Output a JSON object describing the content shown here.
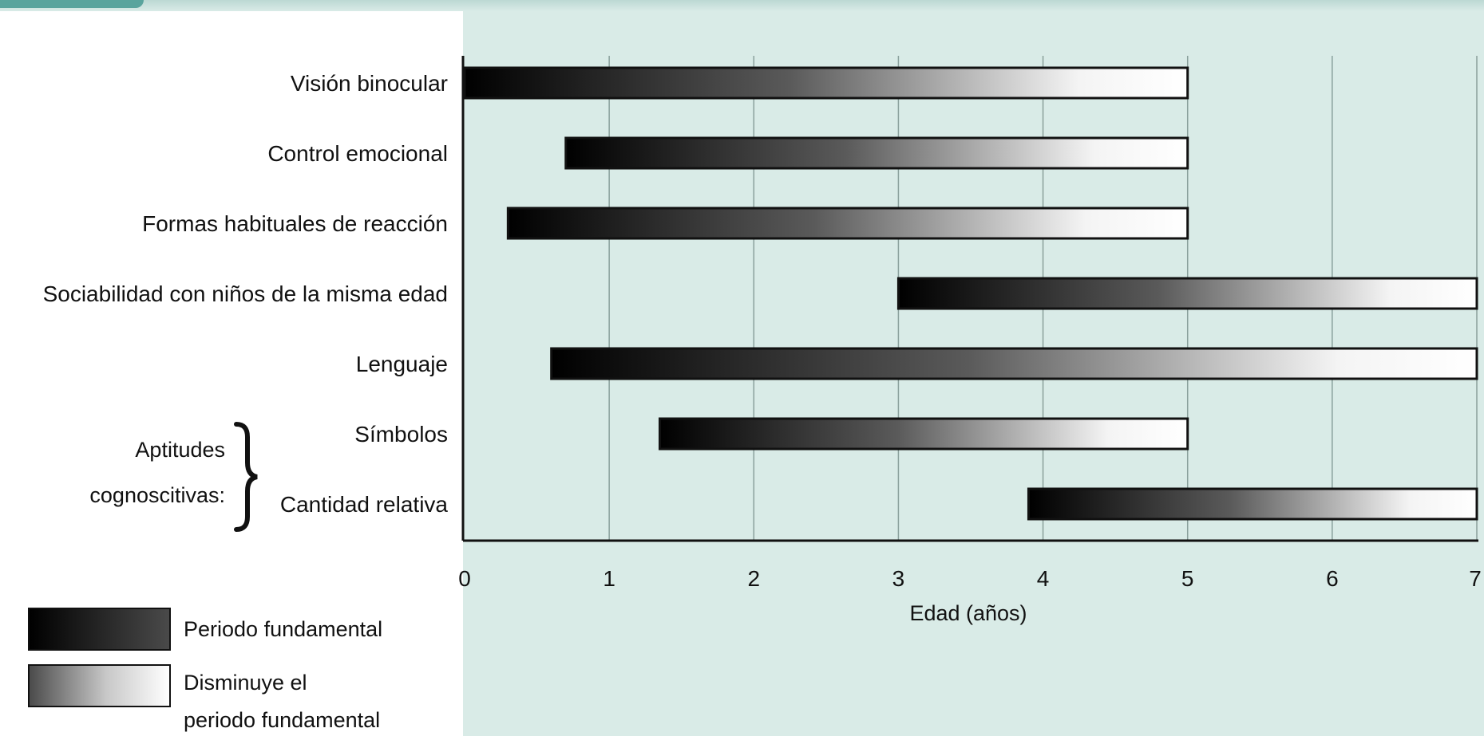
{
  "chart_data": {
    "type": "bar",
    "orientation": "horizontal",
    "title": "",
    "xlabel": "Edad (años)",
    "ylabel": "",
    "xlim": [
      0,
      7
    ],
    "xticks": [
      0,
      1,
      2,
      3,
      4,
      5,
      6,
      7
    ],
    "grid": true,
    "categories": [
      "Visión binocular",
      "Control emocional",
      "Formas habituales de reacción",
      "Sociabilidad con niños de la misma edad",
      "Lenguaje",
      "Símbolos",
      "Cantidad relativa"
    ],
    "bars": [
      {
        "category": "Visión binocular",
        "start": 0.0,
        "end": 5.0
      },
      {
        "category": "Control emocional",
        "start": 0.7,
        "end": 5.0
      },
      {
        "category": "Formas habituales de reacción",
        "start": 0.3,
        "end": 5.0
      },
      {
        "category": "Sociabilidad con niños de la misma edad",
        "start": 3.0,
        "end": 7.0
      },
      {
        "category": "Lenguaje",
        "start": 0.6,
        "end": 7.0
      },
      {
        "category": "Símbolos",
        "start": 1.35,
        "end": 5.0
      },
      {
        "category": "Cantidad relativa",
        "start": 3.9,
        "end": 7.0
      }
    ],
    "groups": [
      {
        "label_lines": [
          "Aptitudes",
          "cognoscitivas:"
        ],
        "categories": [
          "Símbolos",
          "Cantidad relativa"
        ]
      }
    ],
    "legend": {
      "placement": "bottom-left",
      "entries": [
        {
          "label_lines": [
            "Periodo fundamental"
          ],
          "style": "solid-dark"
        },
        {
          "label_lines": [
            "Disminuye el",
            "periodo fundamental"
          ],
          "style": "gradient-dark-to-white"
        }
      ]
    },
    "colors": {
      "background": "#d9ebe7",
      "bar_dark": "#000000",
      "bar_light": "#ffffff",
      "bar_outline": "#111111",
      "grid": "#8aa09c"
    }
  }
}
